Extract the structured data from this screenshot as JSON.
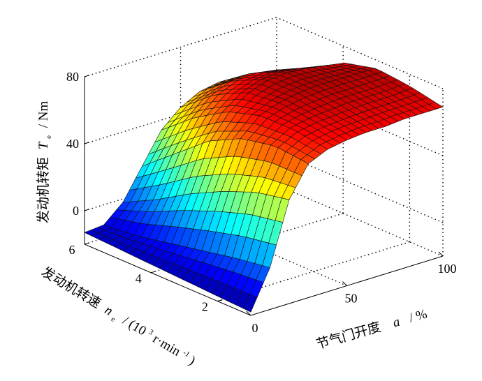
{
  "chart_data": {
    "type": "surface3d",
    "title": "",
    "zlabel": "发动机转矩 T_e / Nm",
    "zlabel_main": "发动机转矩",
    "zlabel_var": "T",
    "zlabel_sub": "e",
    "zlabel_unit": "/ Nm",
    "xlabel": "节气门开度 a / %",
    "xlabel_main": "节气门开度",
    "xlabel_var": "a",
    "xlabel_unit": "/ %",
    "ylabel": "发动机转速 n_e / (10^3 r·min^-1)",
    "ylabel_main": "发动机转速",
    "ylabel_var": "n",
    "ylabel_sub": "e",
    "ylabel_unit_a": "/ (10",
    "ylabel_unit_b": "3",
    "ylabel_unit_c": "r·min",
    "ylabel_unit_d": "-1",
    "ylabel_unit_e": ")",
    "x_range": [
      0,
      100
    ],
    "y_range": [
      1,
      6
    ],
    "z_range": [
      -20,
      80
    ],
    "x_ticks": [
      "0",
      "50",
      "100"
    ],
    "y_ticks": [
      "2",
      "4",
      "6"
    ],
    "z_ticks": [
      "0",
      "40",
      "80"
    ],
    "grid": true,
    "colormap": "jet",
    "surface_samples": {
      "throttle_percent": [
        0,
        10,
        20,
        30,
        40,
        50,
        60,
        70,
        80,
        90,
        100
      ],
      "speed_1000rpm": [
        1,
        2,
        3,
        4,
        5,
        6
      ],
      "torque_Nm_rows_by_speed": [
        [
          -18,
          5,
          42,
          60,
          65,
          67,
          68,
          68,
          69,
          69,
          69
        ],
        [
          -17,
          2,
          38,
          62,
          68,
          70,
          71,
          72,
          72,
          72,
          73
        ],
        [
          -16,
          -2,
          30,
          58,
          68,
          72,
          74,
          75,
          75,
          75,
          75
        ],
        [
          -15,
          -6,
          20,
          48,
          62,
          70,
          74,
          75,
          74,
          72,
          70
        ],
        [
          -14,
          -10,
          8,
          32,
          50,
          60,
          65,
          66,
          64,
          60,
          56
        ],
        [
          -13,
          -12,
          -2,
          16,
          34,
          44,
          50,
          52,
          50,
          46,
          42
        ]
      ]
    }
  }
}
